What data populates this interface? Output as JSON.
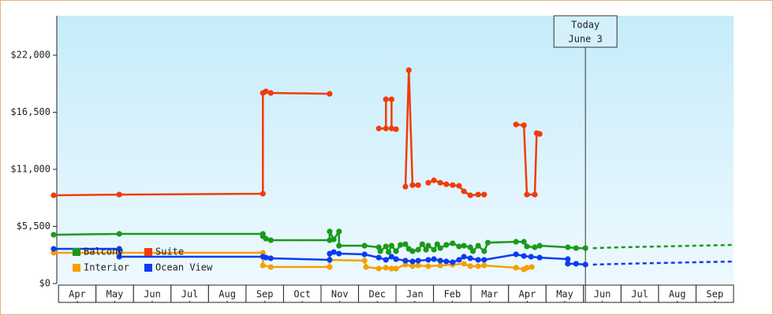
{
  "chart_data": {
    "type": "line",
    "xlim": [
      -0.13,
      18
    ],
    "ylim": [
      0,
      25800
    ],
    "yticks": [
      {
        "value": 0,
        "label": "$0"
      },
      {
        "value": 5500,
        "label": "$5,500"
      },
      {
        "value": 11000,
        "label": "$11,000"
      },
      {
        "value": 16500,
        "label": "$16,500"
      },
      {
        "value": 22000,
        "label": "$22,000"
      }
    ],
    "xticks": [
      {
        "value": 0.5,
        "label": "Apr"
      },
      {
        "value": 1.5,
        "label": "May"
      },
      {
        "value": 2.5,
        "label": "Jun"
      },
      {
        "value": 3.5,
        "label": "Jul"
      },
      {
        "value": 4.5,
        "label": "Aug"
      },
      {
        "value": 5.5,
        "label": "Sep"
      },
      {
        "value": 6.5,
        "label": "Oct"
      },
      {
        "value": 7.5,
        "label": "Nov"
      },
      {
        "value": 8.5,
        "label": "Dec"
      },
      {
        "value": 9.5,
        "label": "Jan"
      },
      {
        "value": 10.5,
        "label": "Feb"
      },
      {
        "value": 11.5,
        "label": "Mar"
      },
      {
        "value": 12.5,
        "label": "Apr"
      },
      {
        "value": 13.5,
        "label": "May"
      },
      {
        "value": 14.5,
        "label": "Jun"
      },
      {
        "value": 15.5,
        "label": "Jul"
      },
      {
        "value": 16.5,
        "label": "Aug"
      },
      {
        "value": 17.5,
        "label": "Sep"
      }
    ],
    "annotation": {
      "x": 14.05,
      "lines": [
        "Today",
        "June 3"
      ]
    },
    "legend": "lower left",
    "series": [
      {
        "name": "Balcony",
        "color": "#1a9a1a",
        "x": [
          -0.13,
          1.62,
          5.45,
          5.45,
          5.53,
          5.66,
          7.23,
          7.23,
          7.34,
          7.48,
          7.48,
          8.16,
          8.54,
          8.58,
          8.73,
          8.8,
          8.88,
          9.0,
          9.12,
          9.25,
          9.34,
          9.44,
          9.59,
          9.7,
          9.8,
          9.86,
          10.01,
          10.1,
          10.18,
          10.34,
          10.51,
          10.68,
          10.81,
          10.98,
          11.05,
          11.19,
          11.35,
          11.45,
          12.2,
          12.41,
          12.49,
          12.7,
          12.83,
          13.58,
          13.8,
          14.05
        ],
        "values": [
          4700,
          4780,
          4780,
          4550,
          4320,
          4170,
          4170,
          5010,
          4250,
          5010,
          3640,
          3640,
          3490,
          3110,
          3570,
          3030,
          3640,
          3110,
          3720,
          3790,
          3340,
          3110,
          3260,
          3790,
          3260,
          3640,
          3260,
          3790,
          3410,
          3720,
          3870,
          3570,
          3640,
          3490,
          3110,
          3640,
          3110,
          3940,
          4020,
          4020,
          3570,
          3490,
          3640,
          3490,
          3410,
          3410
        ],
        "forecast": {
          "x": [
            14.25,
            15,
            16,
            17,
            18
          ],
          "values": [
            3410,
            3490,
            3570,
            3640,
            3720
          ]
        }
      },
      {
        "name": "Suite",
        "color": "#f03c0a",
        "x": [
          -0.13,
          1.62,
          5.45,
          5.45,
          5.53,
          5.66,
          7.23,
          7.9,
          8.54,
          8.73,
          8.73,
          8.88,
          8.88,
          9.0,
          9.12,
          9.25,
          9.34,
          9.44,
          9.59,
          9.7,
          9.86,
          10.01,
          10.18,
          10.34,
          10.51,
          10.68,
          10.81,
          10.98,
          11.19,
          11.35,
          11.8,
          12.2,
          12.41,
          12.49,
          12.7,
          12.75,
          12.83
        ],
        "values": [
          8500,
          8570,
          8650,
          18360,
          18510,
          18360,
          18280,
          null,
          14940,
          14940,
          17750,
          17750,
          14940,
          14870,
          null,
          9330,
          20560,
          9480,
          9480,
          null,
          9710,
          9940,
          9710,
          9560,
          9480,
          9410,
          8880,
          8500,
          8570,
          8570,
          null,
          15320,
          15250,
          8570,
          8570,
          14490,
          14410
        ]
      },
      {
        "name": "Interior",
        "color": "#f5a000",
        "x": [
          -0.13,
          1.62,
          5.45,
          5.45,
          5.66,
          7.23,
          7.23,
          8.16,
          8.2,
          8.54,
          8.73,
          8.88,
          9.0,
          9.25,
          9.44,
          9.59,
          9.86,
          10.18,
          10.51,
          10.81,
          10.98,
          11.19,
          11.35,
          12.2,
          12.41,
          12.49,
          12.62
        ],
        "values": [
          2960,
          2960,
          2960,
          1740,
          1590,
          1590,
          2280,
          2200,
          1590,
          1440,
          1520,
          1440,
          1440,
          1820,
          1670,
          1740,
          1670,
          1740,
          1820,
          1900,
          1670,
          1670,
          1740,
          1520,
          1360,
          1520,
          1590
        ]
      },
      {
        "name": "Ocean View",
        "color": "#0a3cf0",
        "x": [
          -0.13,
          1.62,
          1.62,
          5.45,
          5.53,
          5.66,
          7.23,
          7.23,
          7.34,
          7.48,
          8.16,
          8.54,
          8.73,
          8.88,
          9.0,
          9.25,
          9.44,
          9.59,
          9.86,
          10.01,
          10.18,
          10.34,
          10.51,
          10.68,
          10.81,
          10.98,
          11.19,
          11.35,
          12.2,
          12.41,
          12.6,
          12.83,
          13.58,
          13.58,
          13.8,
          14.05
        ],
        "values": [
          3340,
          3340,
          2580,
          2580,
          2500,
          2430,
          2280,
          2880,
          3030,
          2880,
          2810,
          2500,
          2280,
          2580,
          2350,
          2200,
          2130,
          2200,
          2280,
          2350,
          2200,
          2130,
          2050,
          2280,
          2580,
          2430,
          2280,
          2280,
          2810,
          2650,
          2580,
          2500,
          2350,
          1900,
          1900,
          1820
        ],
        "forecast": {
          "x": [
            14.25,
            15,
            16,
            17,
            18
          ],
          "values": [
            1820,
            1900,
            1970,
            2050,
            2120
          ]
        }
      }
    ]
  }
}
